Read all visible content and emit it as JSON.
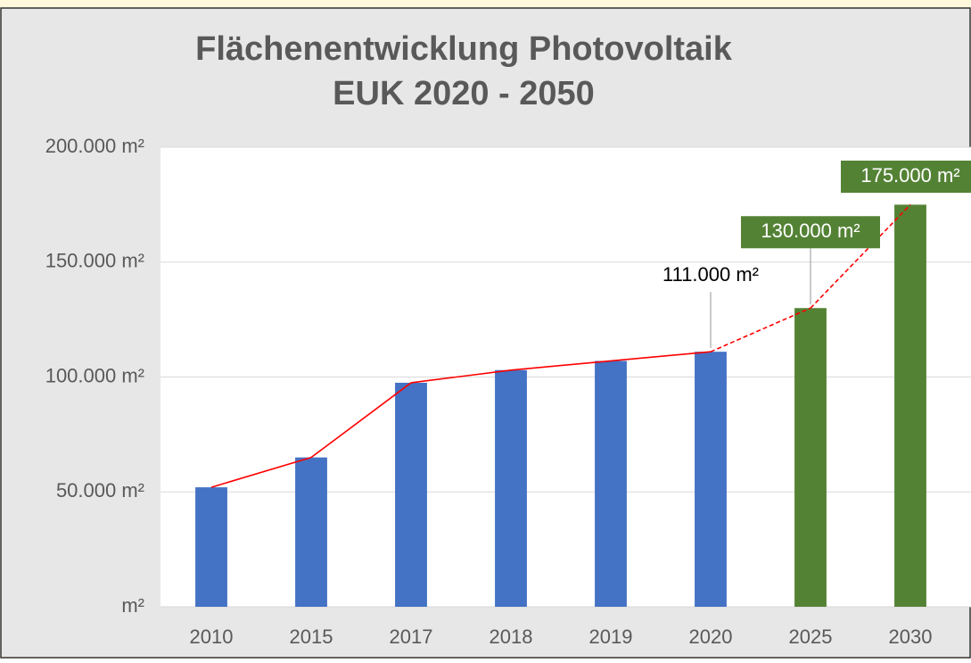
{
  "chart_data": {
    "type": "bar",
    "title": [
      "Flächenentwicklung Photovoltaik",
      "EUK 2020 - 2050"
    ],
    "categories": [
      "2010",
      "2015",
      "2017",
      "2018",
      "2019",
      "2020",
      "2025",
      "2030"
    ],
    "values": [
      52000,
      65000,
      97500,
      103000,
      107000,
      111000,
      130000,
      175000
    ],
    "value_labels": [
      null,
      null,
      null,
      null,
      null,
      "111.000 m²",
      "130.000 m²",
      "175.000 m²"
    ],
    "colors": [
      "#4472c4",
      "#4472c4",
      "#4472c4",
      "#4472c4",
      "#4472c4",
      "#4472c4",
      "#548235",
      "#548235"
    ],
    "line_color": "#ff0000",
    "ylim": [
      0,
      200000
    ],
    "yticks": [
      {
        "value": 0,
        "label": "m²"
      },
      {
        "value": 50000,
        "label": "50.000 m²"
      },
      {
        "value": 100000,
        "label": "100.000 m²"
      },
      {
        "value": 150000,
        "label": "150.000 m²"
      },
      {
        "value": 200000,
        "label": "200.000 m²"
      }
    ],
    "grid": true
  }
}
